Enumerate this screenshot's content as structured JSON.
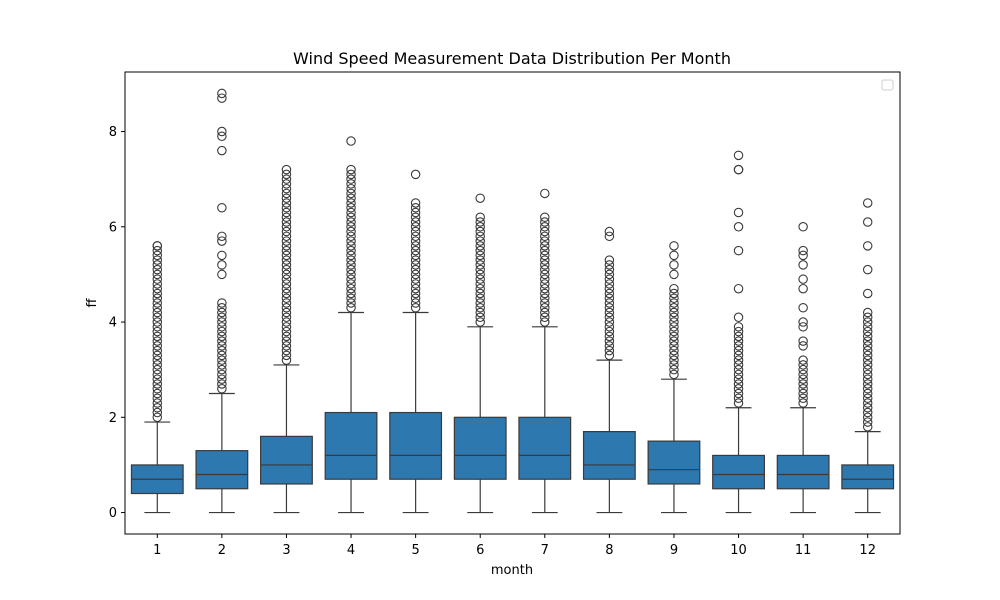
{
  "chart_data": {
    "type": "boxplot",
    "title": "Wind Speed Measurement Data Distribution Per Month",
    "xlabel": "month",
    "ylabel": "ff",
    "ylim": [
      -0.45,
      9.25
    ],
    "yticks": [
      0,
      2,
      4,
      6,
      8
    ],
    "legend": "upper-right (empty)",
    "grid": false,
    "box_color": "#2e78b0",
    "line_color": "#3a3a3a",
    "categories": [
      "1",
      "2",
      "3",
      "4",
      "5",
      "6",
      "7",
      "8",
      "9",
      "10",
      "11",
      "12"
    ],
    "boxes": [
      {
        "whisker_low": 0,
        "q1": 0.4,
        "median": 0.7,
        "q3": 1.0,
        "whisker_high": 1.9,
        "outlier_range": [
          2.0,
          5.6
        ],
        "outlier_step": 0.1,
        "outliers_extra": [
          5.6
        ]
      },
      {
        "whisker_low": 0,
        "q1": 0.5,
        "median": 0.8,
        "q3": 1.3,
        "whisker_high": 2.5,
        "outlier_range": [
          2.6,
          4.4
        ],
        "outlier_step": 0.1,
        "outliers_extra": [
          5.0,
          5.2,
          5.4,
          5.7,
          5.8,
          6.4,
          7.6,
          7.9,
          8.0,
          8.7,
          8.8
        ]
      },
      {
        "whisker_low": 0,
        "q1": 0.6,
        "median": 1.0,
        "q3": 1.6,
        "whisker_high": 3.1,
        "outlier_range": [
          3.2,
          7.2
        ],
        "outlier_step": 0.1,
        "outliers_extra": []
      },
      {
        "whisker_low": 0,
        "q1": 0.7,
        "median": 1.2,
        "q3": 2.1,
        "whisker_high": 4.2,
        "outlier_range": [
          4.3,
          7.2
        ],
        "outlier_step": 0.1,
        "outliers_extra": [
          7.8
        ]
      },
      {
        "whisker_low": 0,
        "q1": 0.7,
        "median": 1.2,
        "q3": 2.1,
        "whisker_high": 4.2,
        "outlier_range": [
          4.3,
          6.5
        ],
        "outlier_step": 0.1,
        "outliers_extra": [
          7.1
        ]
      },
      {
        "whisker_low": 0,
        "q1": 0.7,
        "median": 1.2,
        "q3": 2.0,
        "whisker_high": 3.9,
        "outlier_range": [
          4.0,
          6.2
        ],
        "outlier_step": 0.1,
        "outliers_extra": [
          6.6
        ]
      },
      {
        "whisker_low": 0,
        "q1": 0.7,
        "median": 1.2,
        "q3": 2.0,
        "whisker_high": 3.9,
        "outlier_range": [
          4.0,
          6.2
        ],
        "outlier_step": 0.1,
        "outliers_extra": [
          6.7
        ]
      },
      {
        "whisker_low": 0,
        "q1": 0.7,
        "median": 1.0,
        "q3": 1.7,
        "whisker_high": 3.2,
        "outlier_range": [
          3.3,
          5.3
        ],
        "outlier_step": 0.1,
        "outliers_extra": [
          5.8,
          5.9
        ]
      },
      {
        "whisker_low": 0,
        "q1": 0.6,
        "median": 0.9,
        "q3": 1.5,
        "whisker_high": 2.8,
        "outlier_range": [
          2.9,
          4.7
        ],
        "outlier_step": 0.1,
        "outliers_extra": [
          5.0,
          5.2,
          5.4,
          5.6
        ]
      },
      {
        "whisker_low": 0,
        "q1": 0.5,
        "median": 0.8,
        "q3": 1.2,
        "whisker_high": 2.2,
        "outlier_range": [
          2.3,
          3.9
        ],
        "outlier_step": 0.1,
        "outliers_extra": [
          4.1,
          4.7,
          5.5,
          6.0,
          6.3,
          7.2,
          7.2,
          7.5
        ]
      },
      {
        "whisker_low": 0,
        "q1": 0.5,
        "median": 0.8,
        "q3": 1.2,
        "whisker_high": 2.2,
        "outlier_range": [
          2.3,
          3.2
        ],
        "outlier_step": 0.1,
        "outliers_extra": [
          3.5,
          3.6,
          3.9,
          4.0,
          4.3,
          4.7,
          4.9,
          5.2,
          5.4,
          5.5,
          6.0
        ]
      },
      {
        "whisker_low": 0,
        "q1": 0.5,
        "median": 0.7,
        "q3": 1.0,
        "whisker_high": 1.7,
        "outlier_range": [
          1.8,
          4.2
        ],
        "outlier_step": 0.1,
        "outliers_extra": [
          4.6,
          5.1,
          5.6,
          6.1,
          6.5
        ]
      }
    ]
  }
}
